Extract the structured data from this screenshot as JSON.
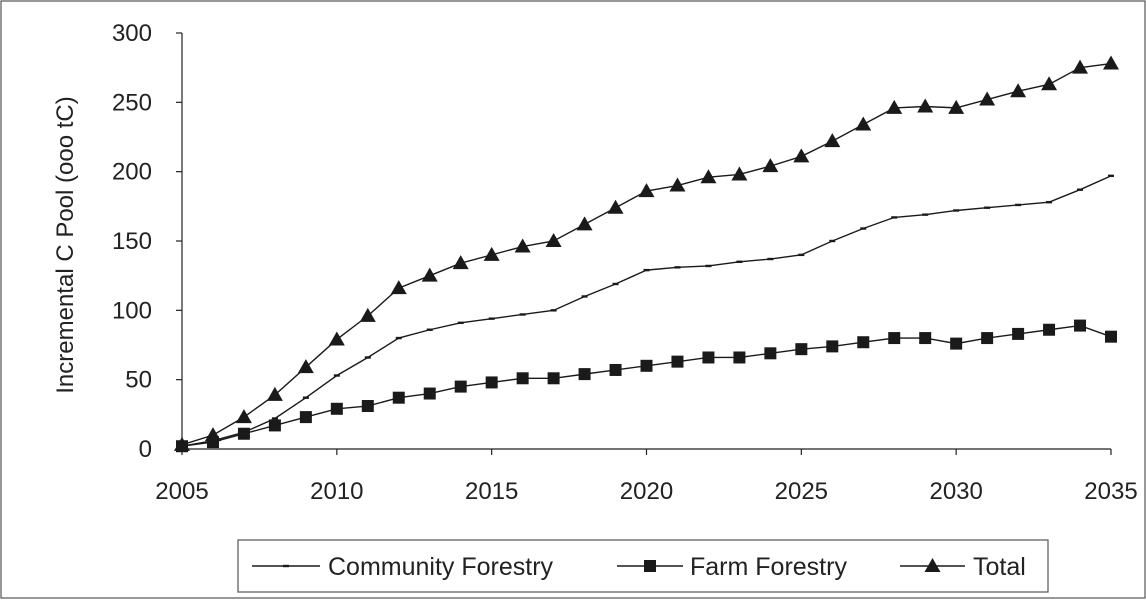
{
  "chart_data": {
    "type": "line",
    "title": "",
    "xlabel": "",
    "ylabel": "Incremental C Pool (ooo tC)",
    "xlim": [
      2005,
      2035
    ],
    "ylim": [
      0,
      300
    ],
    "x_ticks": [
      2005,
      2010,
      2015,
      2020,
      2025,
      2030,
      2035
    ],
    "y_ticks": [
      0,
      50,
      100,
      150,
      200,
      250,
      300
    ],
    "grid": false,
    "legend_position": "bottom",
    "x": [
      2005,
      2006,
      2007,
      2008,
      2009,
      2010,
      2011,
      2012,
      2013,
      2014,
      2015,
      2016,
      2017,
      2018,
      2019,
      2020,
      2021,
      2022,
      2023,
      2024,
      2025,
      2026,
      2027,
      2028,
      2029,
      2030,
      2031,
      2032,
      2033,
      2034,
      2035
    ],
    "series": [
      {
        "name": "Community Forestry",
        "marker": "dash",
        "values": [
          2,
          6,
          12,
          22,
          37,
          53,
          66,
          80,
          86,
          91,
          94,
          97,
          100,
          110,
          119,
          129,
          131,
          132,
          135,
          137,
          140,
          150,
          159,
          167,
          169,
          172,
          174,
          176,
          178,
          187,
          197
        ]
      },
      {
        "name": "Farm Forestry",
        "marker": "square",
        "values": [
          2,
          5,
          11,
          17,
          23,
          29,
          31,
          37,
          40,
          45,
          48,
          51,
          51,
          54,
          57,
          60,
          63,
          66,
          66,
          69,
          72,
          74,
          77,
          80,
          80,
          76,
          80,
          83,
          86,
          89,
          81
        ]
      },
      {
        "name": "Total",
        "marker": "triangle",
        "values": [
          3,
          10,
          23,
          39,
          59,
          79,
          96,
          116,
          125,
          134,
          140,
          146,
          150,
          162,
          174,
          186,
          190,
          196,
          198,
          204,
          211,
          222,
          234,
          246,
          247,
          246,
          252,
          258,
          263,
          275,
          278
        ]
      }
    ]
  }
}
